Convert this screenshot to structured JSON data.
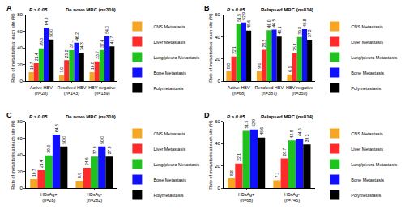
{
  "chart_data": [
    {
      "type": "bar",
      "label": "A",
      "title": "De novo MBC (n=310)",
      "ylabel": "Rate of metastasis at each site (%)",
      "categories": [
        "Active HBV (n=28)",
        "Resolved HBV (n=143)",
        "HBV negative (n=139)"
      ],
      "series": [
        {
          "name": "CNS Metastasis",
          "color": "#f5a623",
          "values": [
            10.7,
            7.0,
            10.8
          ],
          "value_labels": [
            "10.7",
            "7.0",
            "10.8"
          ]
        },
        {
          "name": "Liver Metastasis",
          "color": "#ff2a2a",
          "values": [
            21.4,
            25.2,
            23.7
          ],
          "value_labels": [
            "21.4",
            "25.2",
            "23.7"
          ]
        },
        {
          "name": "Lung/pleura Metastasis",
          "color": "#1fc21f",
          "values": [
            39.3,
            37.1,
            37.4
          ],
          "value_labels": [
            "39.3",
            "37.1",
            "37.4"
          ]
        },
        {
          "name": "Bone Metastasis",
          "color": "#1010ff",
          "values": [
            64.3,
            46.2,
            54.0
          ],
          "value_labels": [
            "64.3",
            "46.2",
            "54.0"
          ]
        },
        {
          "name": "Polymetastasis",
          "color": "#000000",
          "values": [
            50.0,
            34.3,
            41.7
          ],
          "value_labels": [
            "50.0",
            "34.3",
            "41.7"
          ]
        }
      ],
      "ylim": [
        0,
        80
      ],
      "yticks": [
        0,
        20,
        40,
        60,
        80
      ],
      "grid": false,
      "data_labels": true,
      "legend": "right",
      "annotations": [
        "P > 0.05"
      ]
    },
    {
      "type": "bar",
      "label": "B",
      "title": "Relapsed MBC (n=814)",
      "ylabel": "Rate of metastasis at each site (%)",
      "categories": [
        "Active HBV (n=68)",
        "Resolved HBV (n=387)",
        "HBV negative (n=359)"
      ],
      "series": [
        {
          "name": "CNS Metastasis",
          "color": "#f5a623",
          "values": [
            8.8,
            9.0,
            6.1
          ],
          "value_labels": [
            "8.8",
            "9.0",
            "6.1"
          ]
        },
        {
          "name": "Liver Metastasis",
          "color": "#ff2a2a",
          "values": [
            22.1,
            28.2,
            25.1
          ],
          "value_labels": [
            "22.1",
            "28.2",
            "25.1"
          ]
        },
        {
          "name": "Lung/pleura Metastasis",
          "color": "#1fc21f",
          "values": [
            51.5,
            46.0,
            39.8
          ],
          "value_labels": [
            "51.5",
            "46.0",
            "39.8"
          ]
        },
        {
          "name": "Bone Metastasis",
          "color": "#1010ff",
          "values": [
            52.9,
            46.5,
            46.8
          ],
          "value_labels": [
            "52.9",
            "46.5",
            "46.8"
          ]
        },
        {
          "name": "Polymetastasis",
          "color": "#000000",
          "values": [
            45.6,
            40.1,
            37.3
          ],
          "value_labels": [
            "45.6",
            "40.1",
            "37.3"
          ]
        }
      ],
      "ylim": [
        0,
        60
      ],
      "yticks": [
        0,
        20,
        40,
        60
      ],
      "grid": false,
      "data_labels": true,
      "legend": "right",
      "annotations": [
        "P > 0.05"
      ]
    },
    {
      "type": "bar",
      "label": "C",
      "title": "De novo MBC (n=310)",
      "ylabel": "Rate of metastasis at each site (%)",
      "categories": [
        "HBsAg+ (n=28)",
        "HBsAg- (n=282)"
      ],
      "series": [
        {
          "name": "CNS Metastasis",
          "color": "#f5a623",
          "values": [
            10.7,
            8.9
          ],
          "value_labels": [
            "10.7",
            "8.9"
          ]
        },
        {
          "name": "Liver Metastasis",
          "color": "#ff2a2a",
          "values": [
            21.4,
            24.5
          ],
          "value_labels": [
            "21.4",
            "24.5"
          ]
        },
        {
          "name": "Lung/pleura Metastasis",
          "color": "#1fc21f",
          "values": [
            39.3,
            37.9
          ],
          "value_labels": [
            "39.3",
            "37.9"
          ]
        },
        {
          "name": "Bone Metastasis",
          "color": "#1010ff",
          "values": [
            64.3,
            50.0
          ],
          "value_labels": [
            "64.3",
            "50.0"
          ]
        },
        {
          "name": "Polymetastasis",
          "color": "#000000",
          "values": [
            50.0,
            37.9
          ],
          "value_labels": [
            "50.0",
            "37.9"
          ]
        }
      ],
      "ylim": [
        0,
        80
      ],
      "yticks": [
        0,
        20,
        40,
        60,
        80
      ],
      "grid": false,
      "data_labels": true,
      "legend": "right",
      "annotations": [
        "P > 0.05"
      ]
    },
    {
      "type": "bar",
      "label": "D",
      "title": "Relapsed MBC (n=814)",
      "ylabel": "Rate of metastasis at each site (%)",
      "categories": [
        "HBsAg+ (n=68)",
        "HBsAg- (n=746)"
      ],
      "series": [
        {
          "name": "CNS Metastasis",
          "color": "#f5a623",
          "values": [
            8.8,
            7.1
          ],
          "value_labels": [
            "8.8",
            "7.1"
          ]
        },
        {
          "name": "Liver Metastasis",
          "color": "#ff2a2a",
          "values": [
            22.1,
            26.7
          ],
          "value_labels": [
            "22.1",
            "26.7"
          ]
        },
        {
          "name": "Lung/pleura Metastasis",
          "color": "#1fc21f",
          "values": [
            51.5,
            42.9
          ],
          "value_labels": [
            "51.5",
            "42.9"
          ]
        },
        {
          "name": "Bone Metastasis",
          "color": "#1010ff",
          "values": [
            52.9,
            44.6
          ],
          "value_labels": [
            "52.9",
            "44.6"
          ]
        },
        {
          "name": "Polymetastasis",
          "color": "#000000",
          "values": [
            45.6,
            39.3
          ],
          "value_labels": [
            "45.6",
            "39.3"
          ]
        }
      ],
      "ylim": [
        0,
        60
      ],
      "yticks": [
        0,
        20,
        40,
        60
      ],
      "grid": false,
      "data_labels": true,
      "legend": "right",
      "annotations": [
        "P > 0.05"
      ]
    }
  ]
}
